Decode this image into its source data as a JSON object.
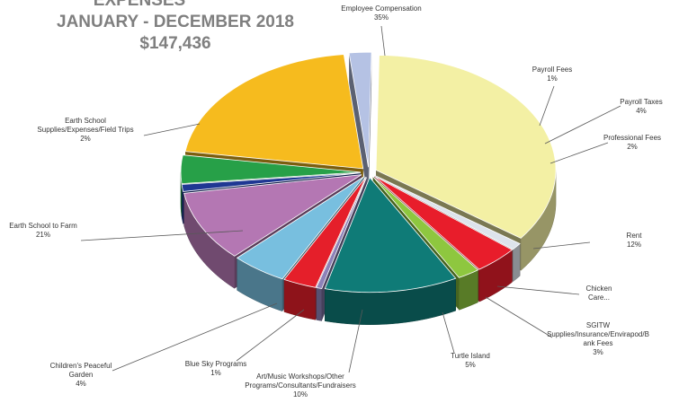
{
  "chart_data": {
    "type": "pie",
    "title_lines": [
      "EXPENSES",
      "JANUARY - DECEMBER 2018",
      "$147,436"
    ],
    "slices": [
      {
        "label": [
          "Employee Compensation"
        ],
        "pct_label": "35%",
        "value": 35,
        "color": "#f3f0a4"
      },
      {
        "label": [
          "Payroll Fees"
        ],
        "pct_label": "1%",
        "value": 1,
        "color": "#dde3ec"
      },
      {
        "label": [
          "Payroll Taxes"
        ],
        "pct_label": "4%",
        "value": 4,
        "color": "#e81d2b"
      },
      {
        "label": [
          "Professional Fees"
        ],
        "pct_label": "2%",
        "value": 2,
        "color": "#8ec73f"
      },
      {
        "label": [
          "Rent"
        ],
        "pct_label": "12%",
        "value": 12,
        "color": "#0f7b77"
      },
      {
        "label": [
          "Chicken",
          "Care..."
        ],
        "pct_label": "",
        "value": 0.5,
        "color": "#8d82b8"
      },
      {
        "label": [
          "SGITW",
          "Supplies/Insurance/Envirapod/B",
          "ank Fees"
        ],
        "pct_label": "3%",
        "value": 3,
        "color": "#e51f2a"
      },
      {
        "label": [
          "Turtle Island"
        ],
        "pct_label": "5%",
        "value": 5,
        "color": "#78bfdf"
      },
      {
        "label": [
          "Art/Music Workshops/Other",
          "Programs/Consultants/Fundraisers"
        ],
        "pct_label": "10%",
        "value": 10,
        "color": "#b477b3"
      },
      {
        "label": [
          "Blue Sky Programs"
        ],
        "pct_label": "1%",
        "value": 1,
        "color": "#1f3793"
      },
      {
        "label": [
          "Children's Peaceful",
          "Garden"
        ],
        "pct_label": "4%",
        "value": 4,
        "color": "#27a048"
      },
      {
        "label": [
          "Earth School to Farm"
        ],
        "pct_label": "21%",
        "value": 21,
        "color": "#f6bb1e"
      },
      {
        "label": [
          "Earth School",
          "Supplies/Expenses/Field Trips"
        ],
        "pct_label": "2%",
        "value": 2,
        "color": "#b5c2e4"
      }
    ],
    "legend": "none"
  }
}
